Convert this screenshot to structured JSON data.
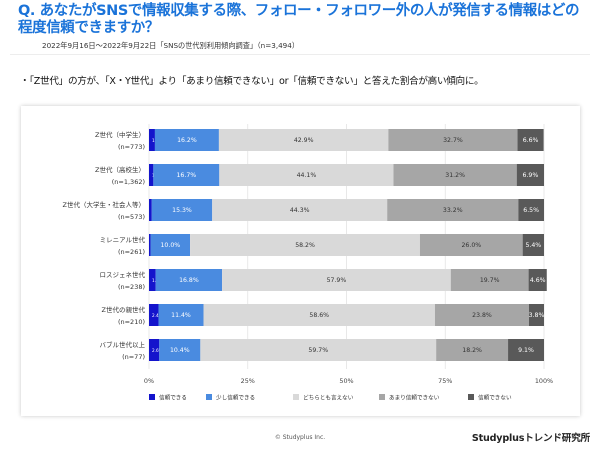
{
  "header": {
    "question": "Q. あなたがSNSで情報収集する際、フォロー・フォロワー外の人が発信する情報はどの程度信頼できますか？",
    "meta": "2022年9月16日～2022年9月22日「SNSの世代別利用傾向調査」（n=3,494）"
  },
  "finding": "・「Z世代」の方が、「X・Y世代」より「あまり信頼できない」or「信頼できない」と答えた割合が高い傾向に。",
  "footer": {
    "copyright": "© Studyplus Inc.",
    "brand": "Studyplusトレンド研究所"
  },
  "colors": {
    "title": "#1a73d9",
    "trust": "#1414cc",
    "somewhat_trust": "#4a8be0",
    "neutral": "#d9d9d9",
    "somewhat_distrust": "#a6a6a6",
    "distrust": "#595959"
  },
  "chart_data": {
    "type": "bar",
    "orientation": "horizontal-stacked-100",
    "categories": [
      {
        "label": "Z世代（中学生）",
        "n": "(n=773)"
      },
      {
        "label": "Z世代（高校生）",
        "n": "(n=1,362)"
      },
      {
        "label": "Z世代（大学生・社会人等）",
        "n": "(n=573)"
      },
      {
        "label": "ミレニアル世代",
        "n": "(n=261)"
      },
      {
        "label": "ロスジェネ世代",
        "n": "(n=238)"
      },
      {
        "label": "Z世代の親世代",
        "n": "(n=210)"
      },
      {
        "label": "バブル世代以上",
        "n": "(n=77)"
      }
    ],
    "series": [
      {
        "name": "信頼できる",
        "color": "#1414cc",
        "values": [
          1.5,
          1.1,
          0.7,
          0.4,
          1.7,
          2.4,
          2.6
        ]
      },
      {
        "name": "少し信頼できる",
        "color": "#4a8be0",
        "values": [
          16.2,
          16.7,
          15.3,
          10.0,
          16.8,
          11.4,
          10.4
        ]
      },
      {
        "name": "どちらとも言えない",
        "color": "#d9d9d9",
        "values": [
          42.9,
          44.1,
          44.3,
          58.2,
          57.9,
          58.6,
          59.7
        ]
      },
      {
        "name": "あまり信頼できない",
        "color": "#a6a6a6",
        "values": [
          32.7,
          31.2,
          33.2,
          26.0,
          19.7,
          23.8,
          18.2
        ]
      },
      {
        "name": "信頼できない",
        "color": "#595959",
        "values": [
          6.6,
          6.9,
          6.5,
          5.4,
          4.6,
          3.8,
          9.1
        ]
      }
    ],
    "data_labels": [
      [
        "1.5%",
        "16.2%",
        "42.9%",
        "32.7%",
        "6.6%"
      ],
      [
        "1.1%",
        "16.7%",
        "44.1%",
        "31.2%",
        "6.9%"
      ],
      [
        "0.7%",
        "15.3%",
        "44.3%",
        "33.2%",
        "6.5%"
      ],
      [
        "0.4%",
        "10.0%",
        "58.2%",
        "26.0%",
        "5.4%"
      ],
      [
        "1.7%",
        "16.8%",
        "57.9%",
        "19.7%",
        "4.6%"
      ],
      [
        "2.4%",
        "11.4%",
        "58.6%",
        "23.8%",
        "3.8%"
      ],
      [
        "2.6%",
        "10.4%",
        "59.7%",
        "18.2%",
        "9.1%"
      ]
    ],
    "x_ticks": [
      "0%",
      "25%",
      "50%",
      "75%",
      "100%"
    ],
    "xlim": [
      0,
      100
    ],
    "grid": true,
    "legend_position": "bottom"
  }
}
